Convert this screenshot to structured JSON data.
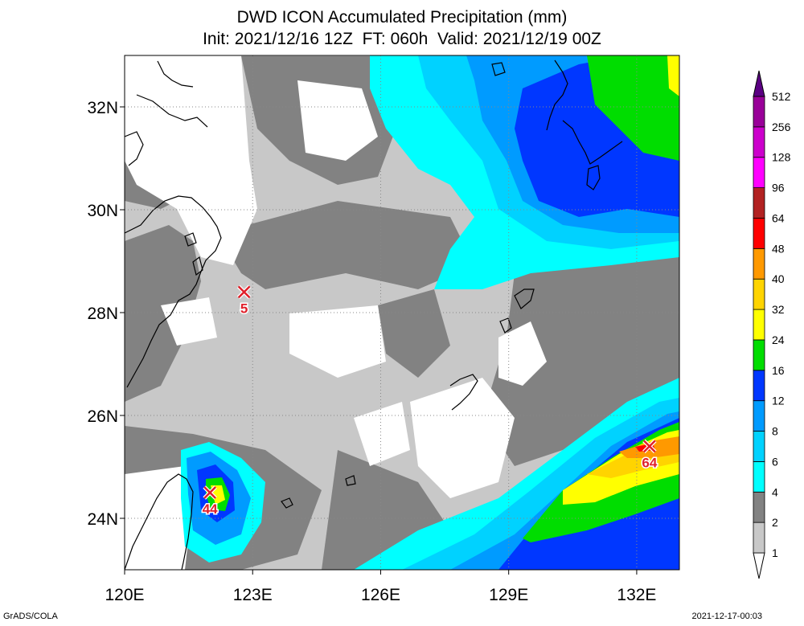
{
  "title_line1": "DWD ICON Accumulated Precipitation (mm)",
  "title_line2": "Init: 2021/12/16 12Z  FT: 060h  Valid: 2021/12/19 00Z",
  "footer_left": "GrADS/COLA",
  "footer_right": "2021-12-17-00:03",
  "map": {
    "lon_range": [
      120,
      133
    ],
    "lat_range": [
      23,
      33
    ],
    "x_ticks": [
      "120E",
      "123E",
      "126E",
      "129E",
      "132E"
    ],
    "y_ticks": [
      "24N",
      "26N",
      "28N",
      "30N",
      "32N"
    ],
    "grid": true
  },
  "colorbar": {
    "levels": [
      "1",
      "2",
      "4",
      "6",
      "8",
      "12",
      "16",
      "24",
      "32",
      "40",
      "48",
      "64",
      "96",
      "128",
      "256",
      "512"
    ],
    "colors": [
      "#ffffff",
      "#c8c8c8",
      "#828282",
      "#00ffff",
      "#00d2ff",
      "#009bff",
      "#0037ff",
      "#00dd00",
      "#ffff00",
      "#ffd400",
      "#ff9900",
      "#ff0000",
      "#b22222",
      "#ff00ff",
      "#cc00cc",
      "#990099",
      "#5b0083"
    ]
  },
  "markers": [
    {
      "label": "5",
      "lon": 122.8,
      "lat": 28.4
    },
    {
      "label": "44",
      "lon": 122.0,
      "lat": 24.5
    },
    {
      "label": "64",
      "lon": 132.3,
      "lat": 25.4
    }
  ]
}
